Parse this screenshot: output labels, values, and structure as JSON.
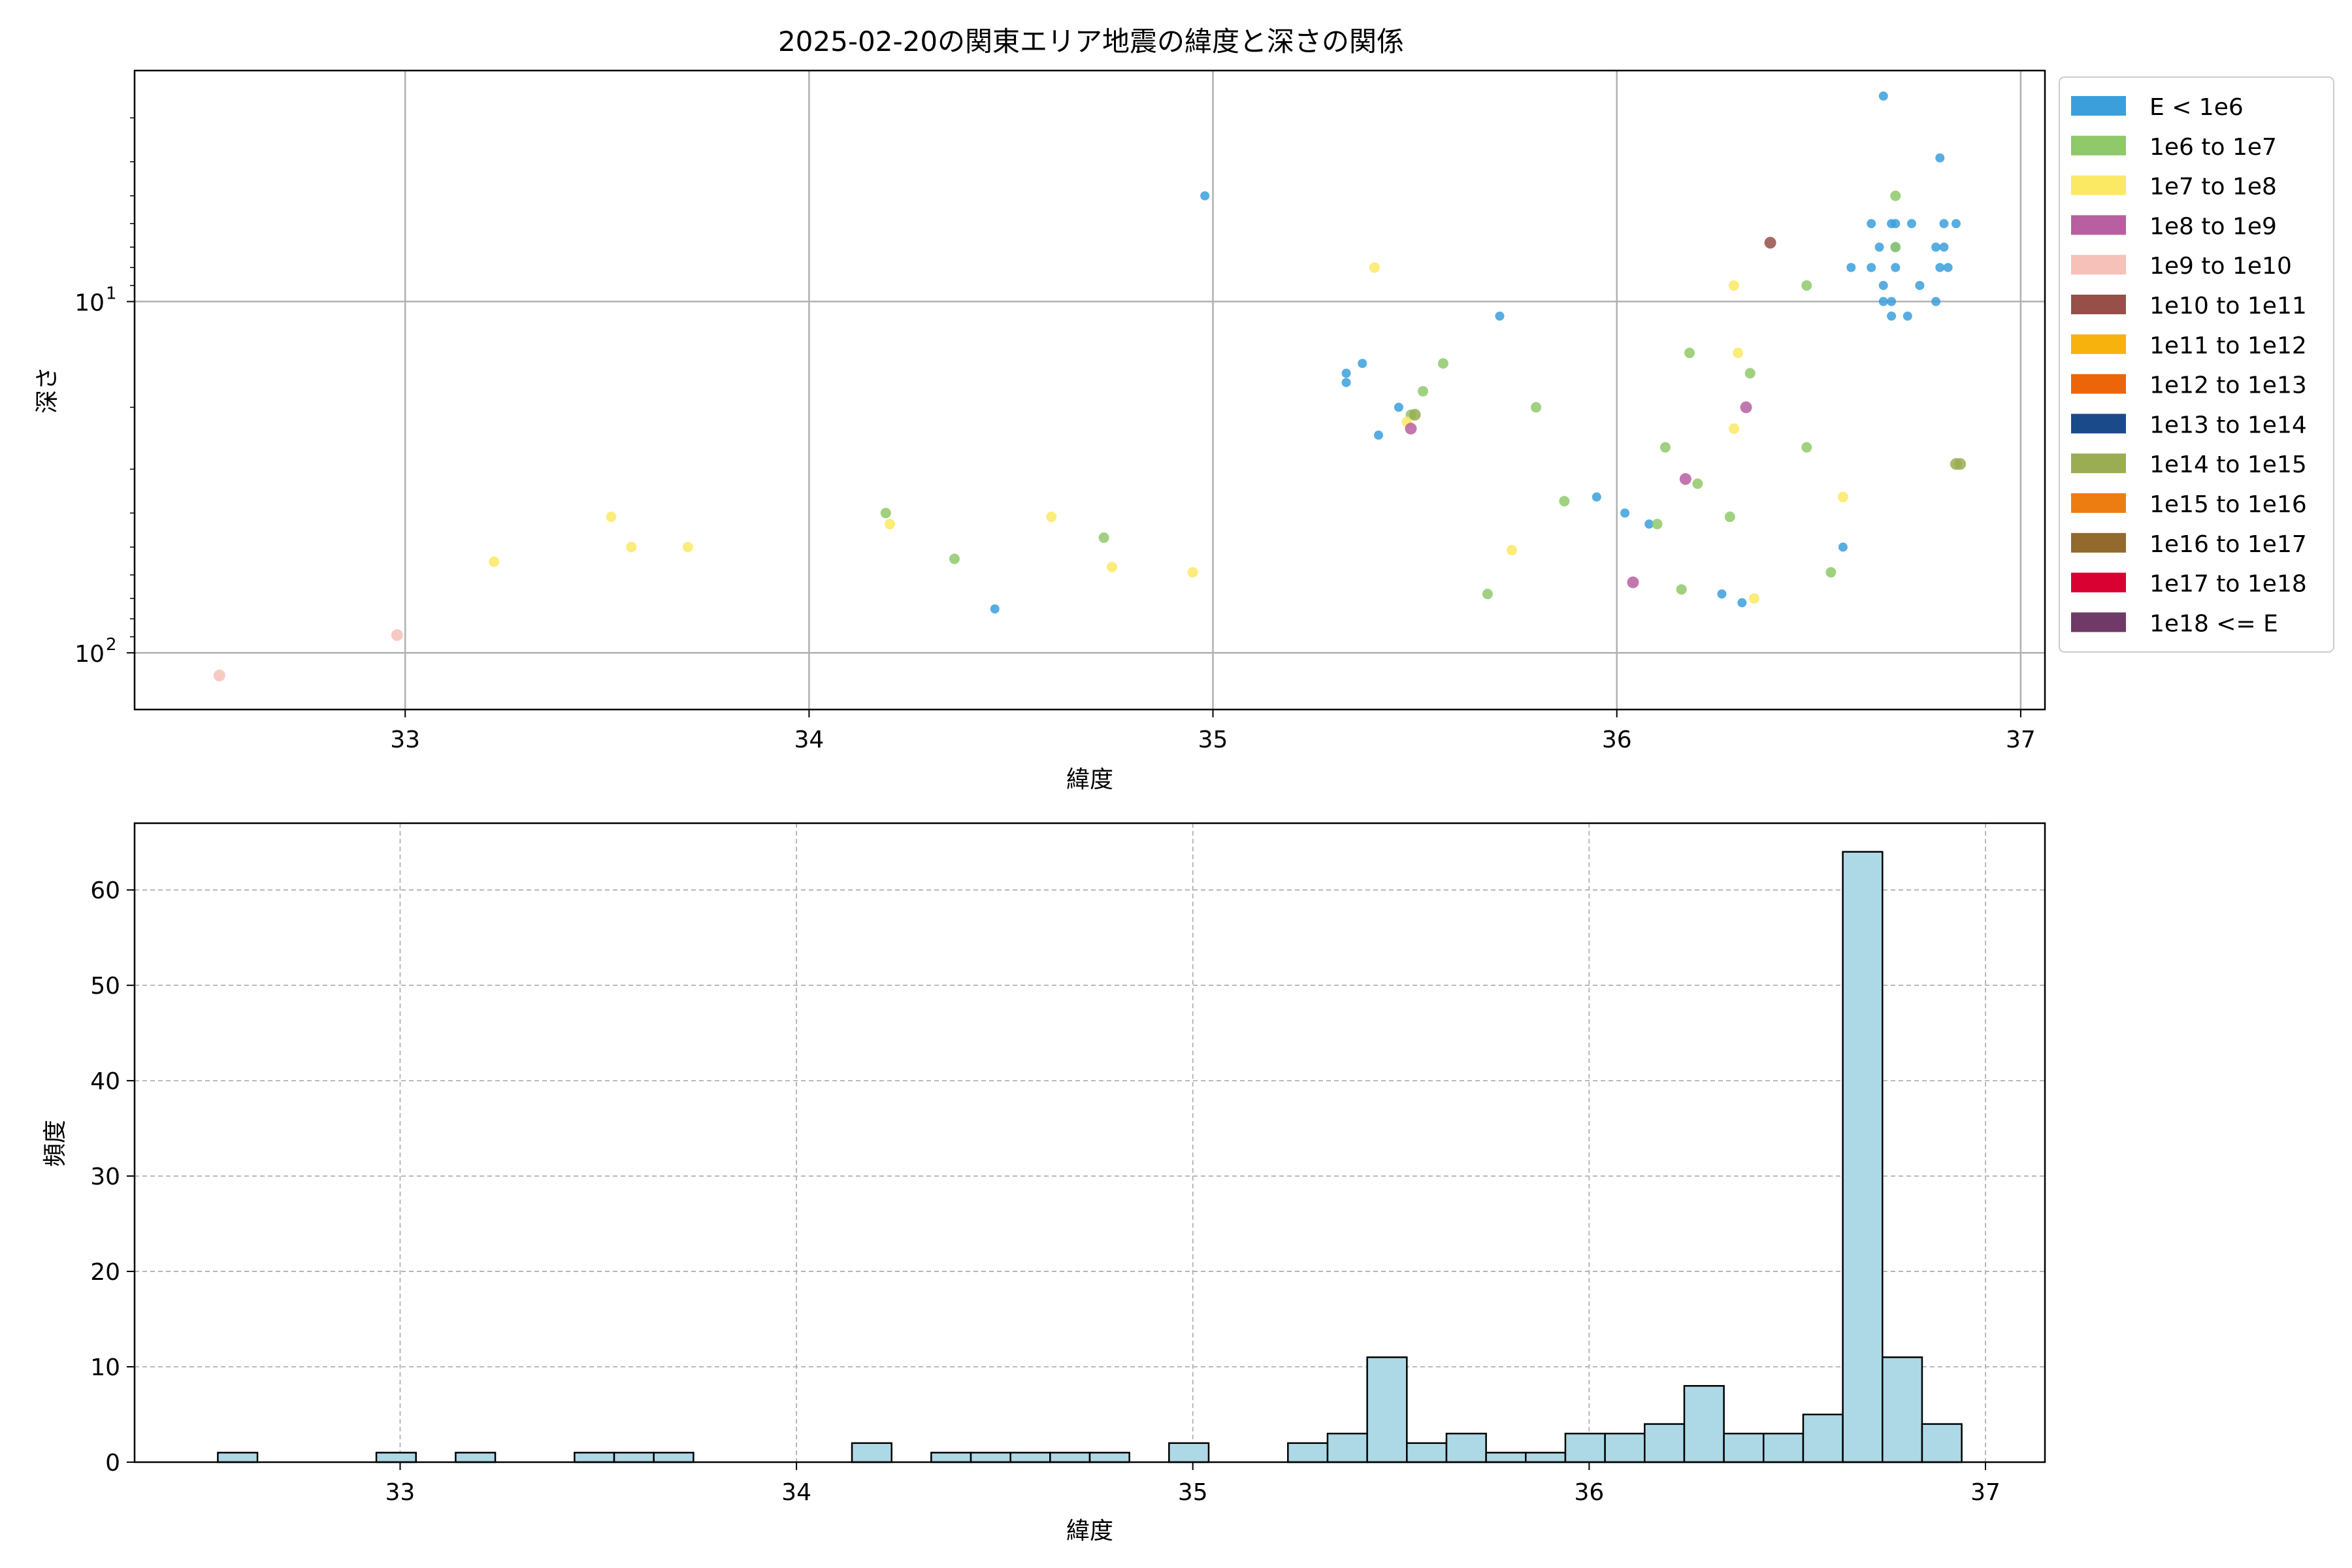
{
  "colors": {
    "grid": "#b0b0b0",
    "bar_fill": "#add8e6",
    "bar_edge": "#000000"
  },
  "chart_data": [
    {
      "type": "scatter",
      "title": "2025-02-20の関東エリア地震の緯度と深さの関係",
      "xlabel": "緯度",
      "ylabel": "深さ",
      "xlim": [
        32.33,
        37.06
      ],
      "ylim": [
        145,
        2.2
      ],
      "y_scale": "log",
      "y_inverted": true,
      "x_ticks": [
        33,
        34,
        35,
        36,
        37
      ],
      "y_ticks": [
        {
          "value": 10,
          "label": "10",
          "exp": "1"
        },
        {
          "value": 100,
          "label": "10",
          "exp": "2"
        }
      ],
      "grid": true,
      "legend_position": "outside-right",
      "legend": [
        {
          "label": "E < 1e6",
          "color": "#3b9fdc"
        },
        {
          "label": "1e6 to 1e7",
          "color": "#8fc96a"
        },
        {
          "label": "1e7 to 1e8",
          "color": "#fce963"
        },
        {
          "label": "1e8 to 1e9",
          "color": "#b75fa0"
        },
        {
          "label": "1e9 to 1e10",
          "color": "#f5c1b8"
        },
        {
          "label": "1e10 to 1e11",
          "color": "#975049"
        },
        {
          "label": "1e11 to 1e12",
          "color": "#f7b20d"
        },
        {
          "label": "1e12 to 1e13",
          "color": "#ec6609"
        },
        {
          "label": "1e13 to 1e14",
          "color": "#1b4a8b"
        },
        {
          "label": "1e14 to 1e15",
          "color": "#9aad52"
        },
        {
          "label": "1e15 to 1e16",
          "color": "#ed7d10"
        },
        {
          "label": "1e16 to 1e17",
          "color": "#936a2e"
        },
        {
          "label": "1e17 to 1e18",
          "color": "#d90032"
        },
        {
          "label": "1e18 <= E",
          "color": "#6f3a68"
        }
      ],
      "series": [
        {
          "class": 0,
          "points": [
            [
              36.66,
              2.6
            ],
            [
              36.8,
              3.9
            ],
            [
              34.98,
              5.0
            ],
            [
              36.63,
              6.0
            ],
            [
              36.68,
              6.0
            ],
            [
              36.69,
              6.0
            ],
            [
              36.73,
              6.0
            ],
            [
              36.81,
              6.0
            ],
            [
              36.84,
              6.0
            ],
            [
              36.65,
              7.0
            ],
            [
              36.69,
              7.0
            ],
            [
              36.79,
              7.0
            ],
            [
              36.81,
              7.0
            ],
            [
              36.58,
              8.0
            ],
            [
              36.63,
              8.0
            ],
            [
              36.69,
              8.0
            ],
            [
              36.8,
              8.0
            ],
            [
              36.82,
              8.0
            ],
            [
              36.66,
              9.0
            ],
            [
              36.75,
              9.0
            ],
            [
              36.66,
              10.0
            ],
            [
              36.68,
              10.0
            ],
            [
              36.79,
              10.0
            ],
            [
              36.68,
              11.0
            ],
            [
              36.72,
              11.0
            ],
            [
              35.71,
              11.0
            ],
            [
              35.37,
              15.0
            ],
            [
              35.33,
              16.0
            ],
            [
              35.33,
              17.0
            ],
            [
              35.46,
              20.0
            ],
            [
              35.41,
              24.0
            ],
            [
              35.95,
              36.0
            ],
            [
              36.02,
              40.0
            ],
            [
              36.08,
              43.0
            ],
            [
              36.56,
              50.0
            ],
            [
              34.46,
              75.0
            ],
            [
              36.26,
              68.0
            ],
            [
              36.31,
              72.0
            ]
          ]
        },
        {
          "class": 1,
          "points": [
            [
              36.69,
              5.0
            ],
            [
              36.69,
              7.0
            ],
            [
              36.47,
              9.0
            ],
            [
              36.18,
              14.0
            ],
            [
              35.57,
              15.0
            ],
            [
              36.33,
              16.0
            ],
            [
              35.52,
              18.0
            ],
            [
              35.49,
              21.0
            ],
            [
              35.8,
              20.0
            ],
            [
              36.12,
              26.0
            ],
            [
              36.47,
              26.0
            ],
            [
              36.2,
              33.0
            ],
            [
              35.87,
              37.0
            ],
            [
              34.19,
              40.0
            ],
            [
              36.28,
              41.0
            ],
            [
              36.1,
              43.0
            ],
            [
              34.73,
              47.0
            ],
            [
              34.36,
              54.0
            ],
            [
              36.53,
              59.0
            ],
            [
              36.16,
              66.0
            ],
            [
              35.68,
              68.0
            ]
          ]
        },
        {
          "class": 2,
          "points": [
            [
              35.4,
              8.0
            ],
            [
              36.29,
              9.0
            ],
            [
              36.3,
              14.0
            ],
            [
              35.48,
              22.0
            ],
            [
              36.29,
              23.0
            ],
            [
              36.56,
              36.0
            ],
            [
              33.51,
              41.0
            ],
            [
              34.6,
              41.0
            ],
            [
              34.2,
              43.0
            ],
            [
              33.56,
              50.0
            ],
            [
              33.7,
              50.0
            ],
            [
              35.74,
              51.0
            ],
            [
              33.22,
              55.0
            ],
            [
              34.75,
              57.0
            ],
            [
              34.95,
              59.0
            ],
            [
              36.34,
              70.0
            ]
          ]
        },
        {
          "class": 3,
          "points": [
            [
              36.32,
              20.0
            ],
            [
              35.49,
              23.0
            ],
            [
              36.17,
              32.0
            ],
            [
              36.04,
              63.0
            ]
          ]
        },
        {
          "class": 4,
          "points": [
            [
              32.98,
              89.0
            ],
            [
              32.54,
              116.0
            ]
          ]
        },
        {
          "class": 5,
          "points": [
            [
              36.38,
              6.8
            ]
          ]
        },
        {
          "class": 9,
          "points": [
            [
              36.84,
              29.0
            ],
            [
              36.85,
              29.0
            ],
            [
              35.5,
              21.0
            ]
          ]
        }
      ]
    },
    {
      "type": "bar",
      "xlabel": "緯度",
      "ylabel": "頻度",
      "xlim": [
        32.33,
        37.15
      ],
      "ylim": [
        0,
        67
      ],
      "x_ticks": [
        33,
        34,
        35,
        36,
        37
      ],
      "y_ticks": [
        0,
        10,
        20,
        30,
        40,
        50,
        60
      ],
      "grid": true,
      "bin_start": 32.54,
      "bin_width": 0.1,
      "values": [
        1,
        0,
        0,
        0,
        1,
        0,
        1,
        0,
        0,
        1,
        1,
        1,
        0,
        0,
        0,
        0,
        2,
        0,
        1,
        1,
        1,
        1,
        1,
        0,
        2,
        0,
        0,
        2,
        3,
        11,
        2,
        3,
        1,
        1,
        3,
        3,
        4,
        8,
        3,
        3,
        5,
        64,
        11,
        4
      ]
    }
  ]
}
